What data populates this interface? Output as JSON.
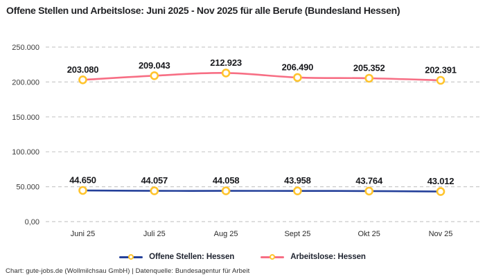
{
  "title": "Offene Stellen und Arbeitslose: Juni 2025 - Nov 2025 für alle Berufe (Bundesland Hessen)",
  "footer": "Chart: gute-jobs.de (Wollmilchsau GmbH) | Datenquelle: Bundesagentur für Arbeit",
  "chart_data": {
    "type": "line",
    "title": "Offene Stellen und Arbeitslose: Juni 2025 - Nov 2025 für alle Berufe (Bundesland Hessen)",
    "xlabel": "",
    "ylabel": "",
    "categories": [
      "Juni 25",
      "Juli 25",
      "Aug 25",
      "Sept 25",
      "Okt 25",
      "Nov 25"
    ],
    "series": [
      {
        "name": "Offene Stellen: Hessen",
        "color": "#24409A",
        "values": [
          44650,
          44057,
          44058,
          43958,
          43764,
          43012
        ],
        "labels": [
          "44.650",
          "44.057",
          "44.058",
          "43.958",
          "43.764",
          "43.012"
        ]
      },
      {
        "name": "Arbeitslose: Hessen",
        "color": "#F76E84",
        "values": [
          203080,
          209043,
          212923,
          206490,
          205352,
          202391
        ],
        "labels": [
          "203.080",
          "209.043",
          "212.923",
          "206.490",
          "205.352",
          "202.391"
        ]
      }
    ],
    "marker": {
      "stroke": "#FFC42D",
      "fill": "#FFFFFF"
    },
    "y_axis": {
      "min": 0,
      "max": 250000,
      "ticks": [
        {
          "value": 0,
          "label": "0,00"
        },
        {
          "value": 50000,
          "label": "50.000"
        },
        {
          "value": 100000,
          "label": "100.000"
        },
        {
          "value": 150000,
          "label": "150.000"
        },
        {
          "value": 200000,
          "label": "200.000"
        },
        {
          "value": 250000,
          "label": "250.000"
        }
      ]
    },
    "grid": {
      "color": "#C9C9C9",
      "dash": "5 4",
      "on": true
    },
    "legend_position": "bottom"
  }
}
